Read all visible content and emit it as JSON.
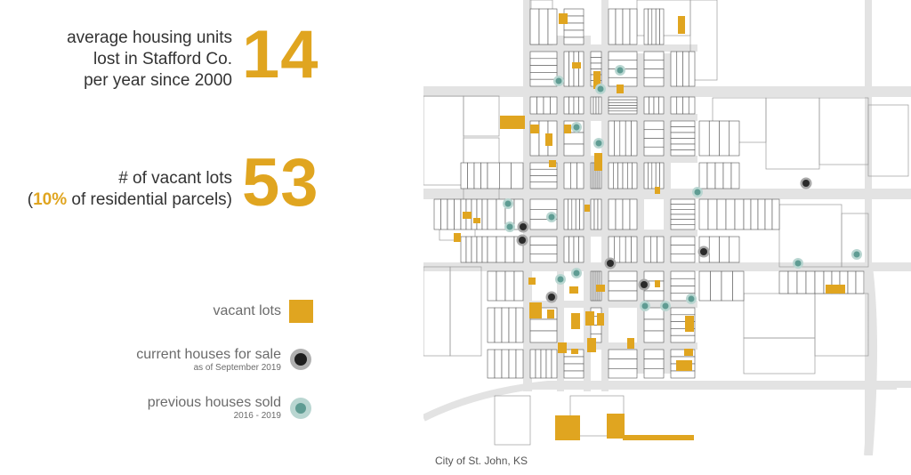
{
  "stats": [
    {
      "line1": "average housing units",
      "line2": "lost in Stafford Co.",
      "line3": "per year since 2000",
      "number": "14"
    },
    {
      "line1": "# of vacant lots",
      "paren_open": "(",
      "highlight": "10%",
      "rest": " of residential parcels)",
      "number": "53"
    }
  ],
  "legend": [
    {
      "label": "vacant lots",
      "sub": "",
      "swatch": "vacant-lot-swatch"
    },
    {
      "label": "current houses for sale",
      "sub": "as of September 2019",
      "swatch": "for-sale-swatch"
    },
    {
      "label": "previous houses sold",
      "sub": "2016 - 2019",
      "swatch": "sold-swatch"
    }
  ],
  "colors": {
    "accent": "#e0a520",
    "for_sale": "#2b2b2b",
    "sold": "#5f9c93",
    "sold_ring": "#b9d6d1",
    "road": "#e3e3e3",
    "parcel_line": "#555555"
  },
  "map": {
    "caption": "City of St. John, KS",
    "vacant_lot_count": 53
  }
}
